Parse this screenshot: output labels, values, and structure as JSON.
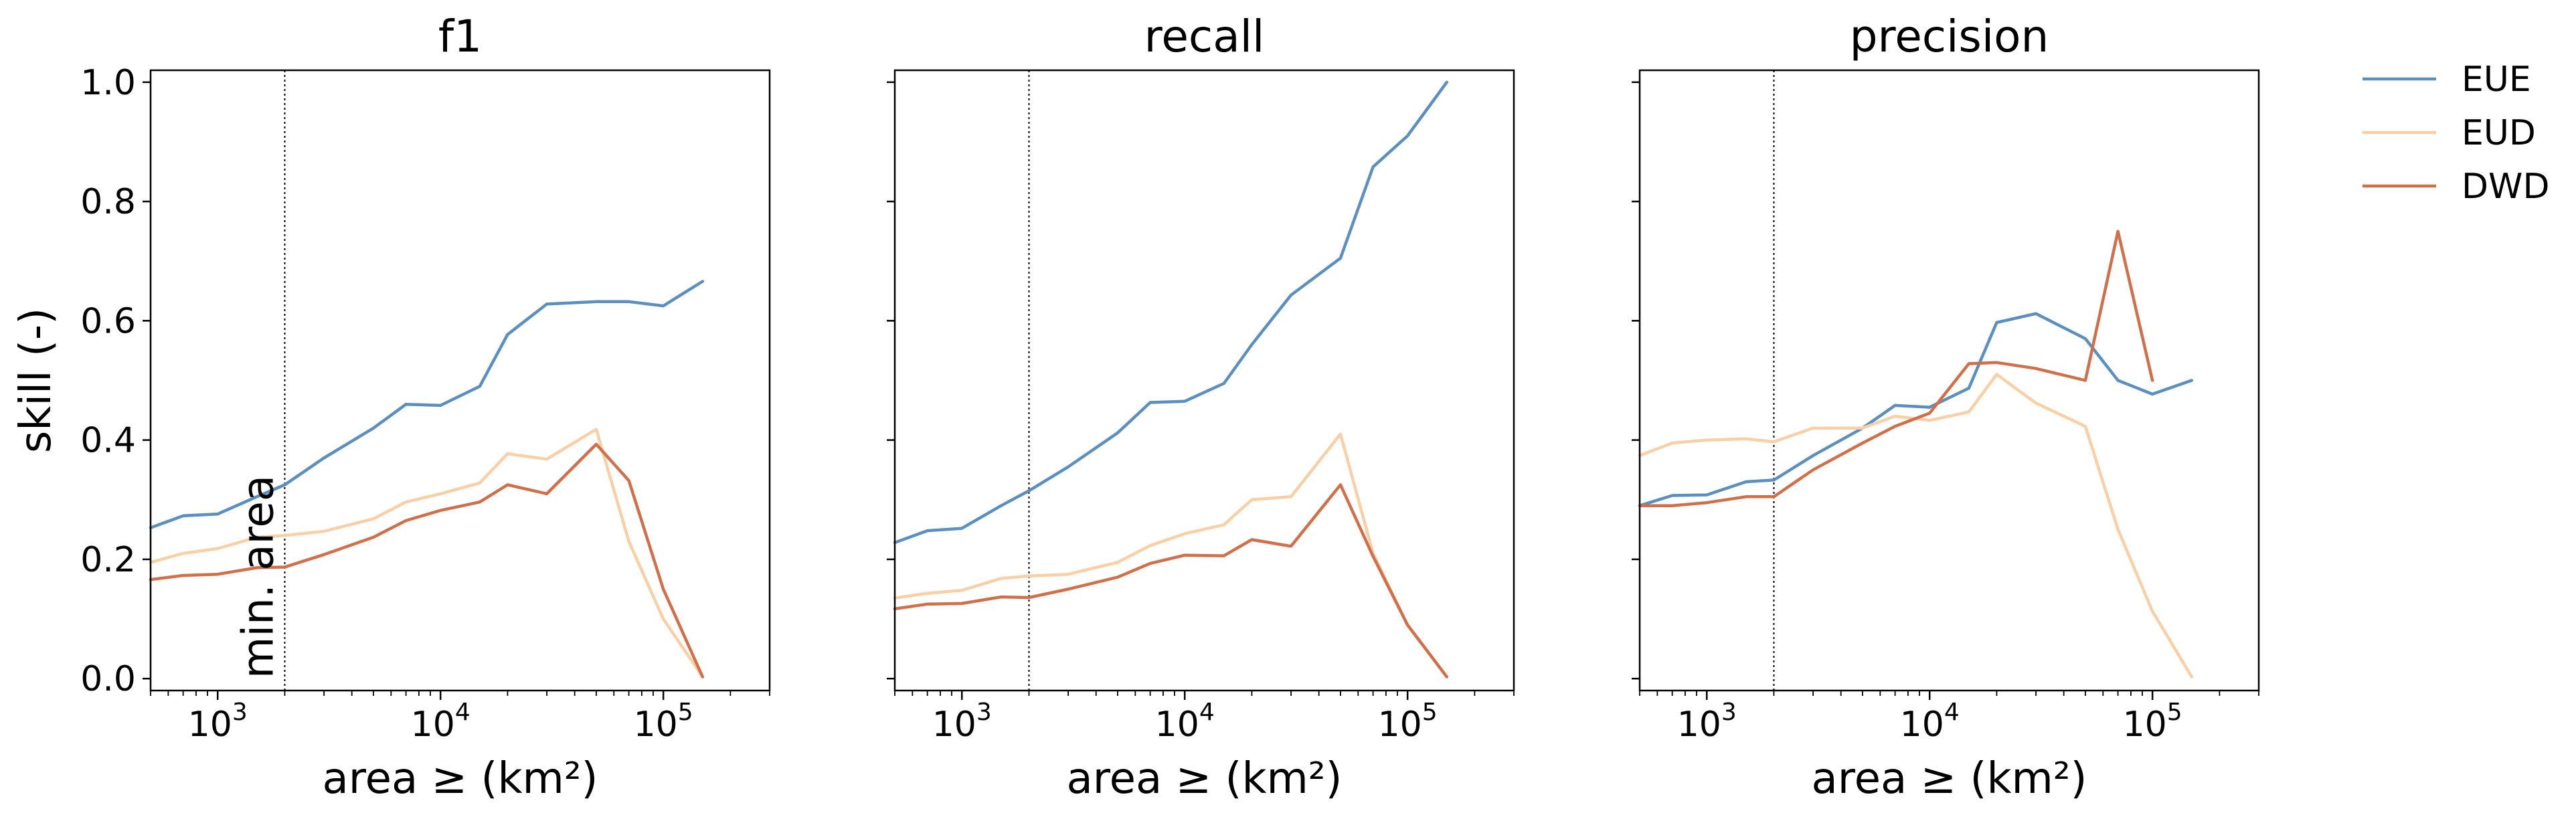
{
  "chart_data": {
    "type": "line",
    "y_axis_label": "skill (-)",
    "x_axis_label": "area ≥ (km²)",
    "x_scale": "log",
    "xlim": [
      500,
      300000
    ],
    "ylim": [
      -0.02,
      1.02
    ],
    "y_ticks": [
      "0.0",
      "0.2",
      "0.4",
      "0.6",
      "0.8",
      "1.0"
    ],
    "x_ticks": [
      {
        "base": "10",
        "exp": "3",
        "value": 1000
      },
      {
        "base": "10",
        "exp": "4",
        "value": 10000
      },
      {
        "base": "10",
        "exp": "5",
        "value": 100000
      }
    ],
    "min_area_value": 2000,
    "min_area_label": "min. area",
    "legend": [
      {
        "name": "EUE",
        "color": "#5b8fc0"
      },
      {
        "name": "EUD",
        "color": "#f9cfa6"
      },
      {
        "name": "DWD",
        "color": "#d0704a"
      }
    ],
    "panels": [
      {
        "title": "f1",
        "series": [
          {
            "name": "EUE",
            "color": "#5b8fc0",
            "x": [
              500,
              700,
              1000,
              1500,
              2000,
              3000,
              5000,
              7000,
              10000,
              15000,
              20000,
              30000,
              50000,
              70000,
              100000,
              150000
            ],
            "y": [
              0.253,
              0.273,
              0.276,
              0.305,
              0.325,
              0.37,
              0.42,
              0.46,
              0.458,
              0.49,
              0.577,
              0.628,
              0.632,
              0.632,
              0.625,
              0.666
            ]
          },
          {
            "name": "EUD",
            "color": "#f9cfa6",
            "x": [
              500,
              700,
              1000,
              1500,
              2000,
              3000,
              5000,
              7000,
              10000,
              15000,
              20000,
              30000,
              50000,
              70000,
              100000,
              150000
            ],
            "y": [
              0.195,
              0.21,
              0.218,
              0.237,
              0.24,
              0.247,
              0.268,
              0.296,
              0.31,
              0.328,
              0.377,
              0.368,
              0.418,
              0.23,
              0.1,
              0.003
            ]
          },
          {
            "name": "DWD",
            "color": "#d0704a",
            "x": [
              500,
              700,
              1000,
              1500,
              2000,
              3000,
              5000,
              7000,
              10000,
              15000,
              20000,
              30000,
              50000,
              70000,
              100000,
              150000
            ],
            "y": [
              0.166,
              0.173,
              0.175,
              0.186,
              0.187,
              0.208,
              0.237,
              0.265,
              0.282,
              0.296,
              0.325,
              0.31,
              0.393,
              0.332,
              0.15,
              0.003
            ]
          }
        ]
      },
      {
        "title": "recall",
        "series": [
          {
            "name": "EUE",
            "color": "#5b8fc0",
            "x": [
              500,
              700,
              1000,
              1500,
              2000,
              3000,
              5000,
              7000,
              10000,
              15000,
              20000,
              30000,
              50000,
              70000,
              100000,
              150000
            ],
            "y": [
              0.228,
              0.248,
              0.252,
              0.29,
              0.315,
              0.355,
              0.412,
              0.463,
              0.465,
              0.495,
              0.56,
              0.643,
              0.705,
              0.858,
              0.91,
              1.0
            ]
          },
          {
            "name": "EUD",
            "color": "#f9cfa6",
            "x": [
              500,
              700,
              1000,
              1500,
              2000,
              3000,
              5000,
              7000,
              10000,
              15000,
              20000,
              30000,
              50000,
              70000,
              100000,
              150000
            ],
            "y": [
              0.135,
              0.143,
              0.148,
              0.168,
              0.172,
              0.175,
              0.195,
              0.223,
              0.243,
              0.258,
              0.3,
              0.305,
              0.41,
              0.21,
              0.09,
              0.003
            ]
          },
          {
            "name": "DWD",
            "color": "#d0704a",
            "x": [
              500,
              700,
              1000,
              1500,
              2000,
              3000,
              5000,
              7000,
              10000,
              15000,
              20000,
              30000,
              50000,
              70000,
              100000,
              150000
            ],
            "y": [
              0.117,
              0.125,
              0.126,
              0.137,
              0.136,
              0.15,
              0.17,
              0.193,
              0.207,
              0.206,
              0.233,
              0.222,
              0.325,
              0.205,
              0.09,
              0.003
            ]
          }
        ]
      },
      {
        "title": "precision",
        "series": [
          {
            "name": "EUE",
            "color": "#5b8fc0",
            "x": [
              500,
              700,
              1000,
              1500,
              2000,
              3000,
              5000,
              7000,
              10000,
              15000,
              20000,
              30000,
              50000,
              70000,
              100000,
              150000
            ],
            "y": [
              0.29,
              0.307,
              0.308,
              0.33,
              0.333,
              0.374,
              0.42,
              0.458,
              0.455,
              0.487,
              0.597,
              0.612,
              0.57,
              0.5,
              0.477,
              0.5
            ]
          },
          {
            "name": "EUD",
            "color": "#f9cfa6",
            "x": [
              500,
              700,
              1000,
              1500,
              2000,
              3000,
              5000,
              7000,
              10000,
              15000,
              20000,
              30000,
              50000,
              70000,
              100000,
              150000
            ],
            "y": [
              0.374,
              0.395,
              0.4,
              0.402,
              0.397,
              0.42,
              0.42,
              0.44,
              0.433,
              0.447,
              0.51,
              0.462,
              0.423,
              0.25,
              0.113,
              0.003
            ]
          },
          {
            "name": "DWD",
            "color": "#d0704a",
            "x": [
              500,
              700,
              1000,
              1500,
              2000,
              3000,
              5000,
              7000,
              10000,
              15000,
              20000,
              30000,
              50000,
              70000,
              100000
            ],
            "y": [
              0.29,
              0.29,
              0.295,
              0.305,
              0.305,
              0.35,
              0.395,
              0.423,
              0.445,
              0.528,
              0.53,
              0.52,
              0.5,
              0.75,
              0.5
            ]
          }
        ]
      }
    ]
  }
}
